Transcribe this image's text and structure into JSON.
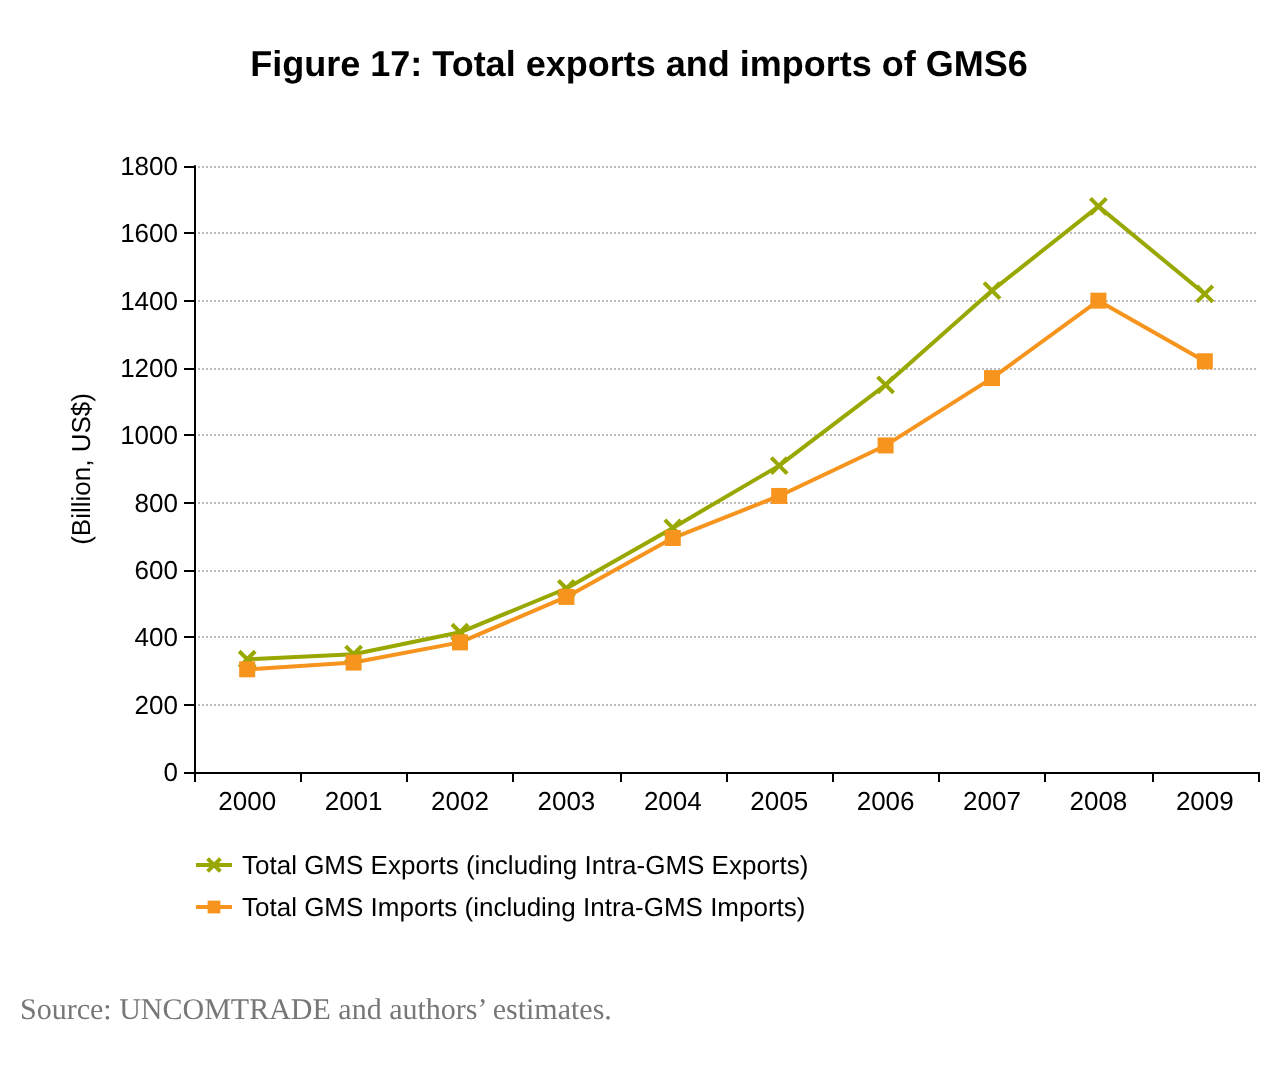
{
  "chart_data": {
    "type": "line",
    "title": "Figure 17: Total exports and imports of GMS6",
    "ylabel": "(Billion, US$)",
    "categories": [
      "2000",
      "2001",
      "2002",
      "2003",
      "2004",
      "2005",
      "2006",
      "2007",
      "2008",
      "2009"
    ],
    "series": [
      {
        "name": "Total GMS Exports (including Intra-GMS Exports)",
        "color": "#99a800",
        "marker": "cross",
        "values": [
          335,
          350,
          415,
          545,
          725,
          910,
          1150,
          1430,
          1680,
          1420
        ]
      },
      {
        "name": "Total GMS Imports (including Intra-GMS Imports)",
        "color": "#f7941d",
        "marker": "square",
        "values": [
          305,
          325,
          385,
          520,
          695,
          820,
          970,
          1170,
          1400,
          1220
        ]
      }
    ],
    "ylim": [
      0,
      1800
    ],
    "yticks": [
      0,
      200,
      400,
      600,
      800,
      1000,
      1200,
      1400,
      1600,
      1800
    ],
    "grid": "y",
    "legend": "bottom left",
    "line_style": "solid",
    "annotations": [
      "Source: UNCOMTRADE and authors’ estimates."
    ]
  }
}
